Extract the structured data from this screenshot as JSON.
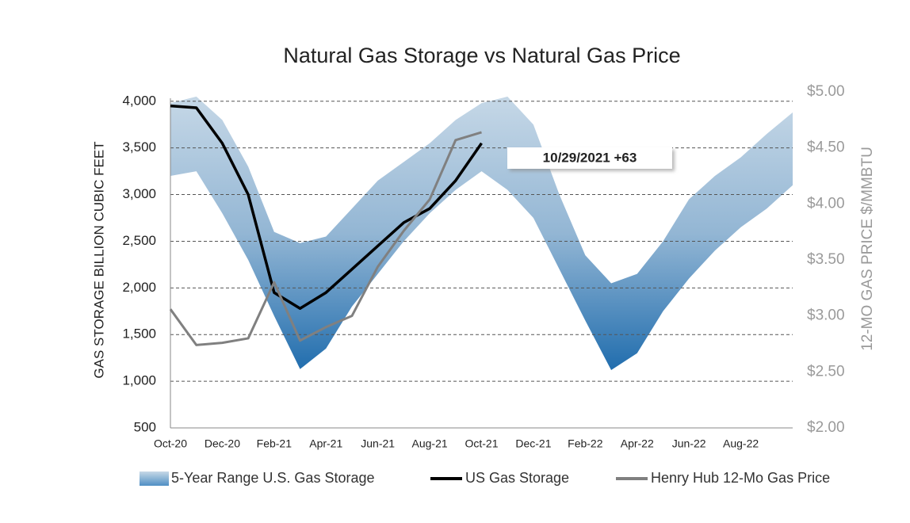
{
  "chart_data": {
    "type": "line",
    "title": "Natural Gas Storage vs Natural Gas Price",
    "y_label": "GAS STORAGE BILLION CUBIC FEET",
    "y2_label": "12-MO GAS PRICE $/MMBTU",
    "annotation": "10/29/2021 +63",
    "categories": [
      "Oct-20",
      null,
      "Dec-20",
      null,
      "Feb-21",
      null,
      "Apr-21",
      null,
      "Jun-21",
      null,
      "Aug-21",
      null,
      "Oct-21",
      null,
      "Dec-21",
      null,
      "Feb-22",
      null,
      "Apr-22",
      null,
      "Jun-22",
      null,
      "Aug-22",
      null,
      null
    ],
    "ylim": [
      500,
      4100
    ],
    "yticks": [
      500,
      {
        "value": 1000,
        "label": "1,000"
      },
      {
        "value": 1500,
        "label": "1,500"
      },
      {
        "value": 2000,
        "label": "2,000"
      },
      {
        "value": 2500,
        "label": "2,500"
      },
      {
        "value": 3000,
        "label": "3,000"
      },
      {
        "value": 3500,
        "label": "3,500"
      },
      {
        "value": 4000,
        "label": "4,000"
      }
    ],
    "y2lim": [
      2.0,
      5.0
    ],
    "y2ticks": [
      {
        "value": 2.0,
        "label": "$2.00"
      },
      {
        "value": 2.5,
        "label": "$2.50"
      },
      {
        "value": 3.0,
        "label": "$3.00"
      },
      {
        "value": 3.5,
        "label": "$3.50"
      },
      {
        "value": 4.0,
        "label": "$4.00"
      },
      {
        "value": 4.5,
        "label": "$4.50"
      },
      {
        "value": 5.0,
        "label": "$5.00"
      }
    ],
    "grid": true,
    "legend": "bottom",
    "series": [
      {
        "name": "5-Year Range U.S. Gas Storage",
        "color": "#8fb3d3",
        "high": [
          3980,
          4050,
          3800,
          3300,
          2600,
          2480,
          2550,
          2850,
          3150,
          3350,
          3550,
          3800,
          3980,
          4050,
          3750,
          3000,
          2350,
          2050,
          2150,
          2500,
          2950,
          3200,
          3400,
          3650,
          3880
        ],
        "low": [
          3200,
          3250,
          2800,
          2300,
          1700,
          1130,
          1350,
          1800,
          2150,
          2500,
          2800,
          3050,
          3250,
          3050,
          2750,
          2200,
          1650,
          1120,
          1300,
          1750,
          2100,
          2400,
          2650,
          2850,
          3100
        ]
      },
      {
        "name": "US Gas Storage",
        "color": "#000000",
        "values": [
          3950,
          3930,
          3550,
          3000,
          1950,
          1780,
          1950,
          2200,
          2450,
          2700,
          2850,
          3150,
          3550,
          null,
          null,
          null,
          null,
          null,
          null,
          null,
          null,
          null,
          null,
          null,
          null
        ]
      },
      {
        "name": "Henry Hub 12-Mo Gas Price",
        "color": "#808080",
        "axis": "y2",
        "values": [
          3.06,
          2.74,
          2.76,
          2.8,
          3.3,
          2.78,
          2.9,
          3.0,
          3.44,
          3.76,
          4.04,
          4.57,
          4.64,
          null,
          null,
          null,
          null,
          null,
          null,
          null,
          null,
          null,
          null,
          null,
          null
        ]
      }
    ]
  }
}
